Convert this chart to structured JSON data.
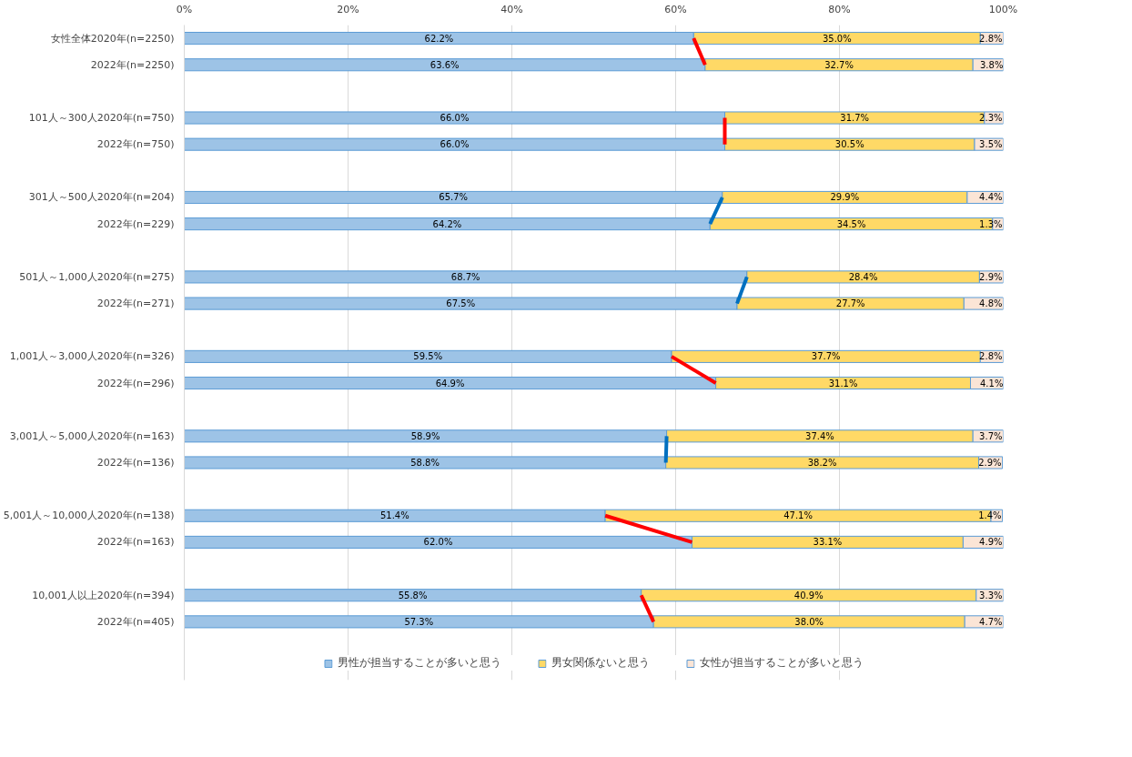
{
  "chart_data": {
    "type": "bar",
    "orientation": "horizontal",
    "stacked": true,
    "categories": [
      "女性全体2020年(n=2250)",
      "2022年(n=2250)",
      null,
      "101人～300人2020年(n=750)",
      "2022年(n=750)",
      null,
      "301人～500人2020年(n=204)",
      "2022年(n=229)",
      null,
      "501人～1,000人2020年(n=275)",
      "2022年(n=271)",
      null,
      "1,001人～3,000人2020年(n=326)",
      "2022年(n=296)",
      null,
      "3,001人～5,000人2020年(n=163)",
      "2022年(n=136)",
      null,
      "5,001人～10,000人2020年(n=138)",
      "2022年(n=163)",
      null,
      "10,001人以上2020年(n=394)",
      "2022年(n=405)"
    ],
    "series": [
      {
        "name": "男性が担当することが多いと思う",
        "color": "#9dc3e6",
        "values": [
          62.2,
          63.6,
          null,
          66.0,
          66.0,
          null,
          65.7,
          64.2,
          null,
          68.7,
          67.5,
          null,
          59.5,
          64.9,
          null,
          58.9,
          58.8,
          null,
          51.4,
          62.0,
          null,
          55.8,
          57.3
        ],
        "value_labels": [
          "62.2%",
          "63.6%",
          null,
          "66.0%",
          "66.0%",
          null,
          "65.7%",
          "64.2%",
          null,
          "68.7%",
          "67.5%",
          null,
          "59.5%",
          "64.9%",
          null,
          "58.9%",
          "58.8%",
          null,
          "51.4%",
          "62.0%",
          null,
          "55.8%",
          "57.3%"
        ]
      },
      {
        "name": "男女関係ないと思う",
        "color": "#ffd966",
        "values": [
          35.0,
          32.7,
          null,
          31.7,
          30.5,
          null,
          29.9,
          34.5,
          null,
          28.4,
          27.7,
          null,
          37.7,
          31.1,
          null,
          37.4,
          38.2,
          null,
          47.1,
          33.1,
          null,
          40.9,
          38.0
        ],
        "value_labels": [
          "35.0%",
          "32.7%",
          null,
          "31.7%",
          "30.5%",
          null,
          "29.9%",
          "34.5%",
          null,
          "28.4%",
          "27.7%",
          null,
          "37.7%",
          "31.1%",
          null,
          "37.4%",
          "38.2%",
          null,
          "47.1%",
          "33.1%",
          null,
          "40.9%",
          "38.0%"
        ]
      },
      {
        "name": "女性が担当することが多いと思う",
        "color": "#fbe5d6",
        "values": [
          2.8,
          3.8,
          null,
          2.3,
          3.5,
          null,
          4.4,
          1.3,
          null,
          2.9,
          4.8,
          null,
          2.8,
          4.1,
          null,
          3.7,
          2.9,
          null,
          1.4,
          4.9,
          null,
          3.3,
          4.7
        ],
        "value_labels": [
          "2.8%",
          "3.8%",
          null,
          "2.3%",
          "3.5%",
          null,
          "4.4%",
          "1.3%",
          null,
          "2.9%",
          "4.8%",
          null,
          "2.8%",
          "4.1%",
          null,
          "3.7%",
          "2.9%",
          null,
          "1.4%",
          "4.9%",
          null,
          "3.3%",
          "4.7%"
        ]
      },
      {
        "type": "line",
        "color": "#ff0000",
        "values": [
          62.2,
          63.6,
          null,
          null,
          null,
          null,
          null,
          null,
          null,
          null,
          null,
          null,
          null,
          null,
          null,
          null,
          null,
          null,
          null,
          null,
          null,
          null,
          null
        ]
      },
      {
        "type": "line",
        "color": "#ff0000",
        "values": [
          null,
          null,
          null,
          66.0,
          66.0,
          null,
          null,
          null,
          null,
          null,
          null,
          null,
          null,
          null,
          null,
          null,
          null,
          null,
          null,
          null,
          null,
          null,
          null
        ]
      },
      {
        "type": "line",
        "color": "#0070c0",
        "values": [
          null,
          null,
          null,
          null,
          null,
          null,
          65.7,
          64.2,
          null,
          null,
          null,
          null,
          null,
          null,
          null,
          null,
          null,
          null,
          null,
          null,
          null,
          null,
          null
        ]
      },
      {
        "type": "line",
        "color": "#0070c0",
        "values": [
          null,
          null,
          null,
          null,
          null,
          null,
          null,
          null,
          null,
          68.7,
          67.5,
          null,
          null,
          null,
          null,
          null,
          null,
          null,
          null,
          null,
          null,
          null,
          null
        ]
      },
      {
        "type": "line",
        "color": "#ff0000",
        "values": [
          null,
          null,
          null,
          null,
          null,
          null,
          null,
          null,
          null,
          null,
          null,
          null,
          59.5,
          64.9,
          null,
          null,
          null,
          null,
          null,
          null,
          null,
          null,
          null
        ]
      },
      {
        "type": "line",
        "color": "#0070c0",
        "values": [
          null,
          null,
          null,
          null,
          null,
          null,
          null,
          null,
          null,
          null,
          null,
          null,
          null,
          null,
          null,
          58.9,
          58.8,
          null,
          null,
          null,
          null,
          null,
          null
        ]
      },
      {
        "type": "line",
        "color": "#ff0000",
        "values": [
          null,
          null,
          null,
          null,
          null,
          null,
          null,
          null,
          null,
          null,
          null,
          null,
          null,
          null,
          null,
          null,
          null,
          null,
          51.4,
          62.0,
          null,
          null,
          null
        ]
      },
      {
        "type": "line",
        "color": "#ff0000",
        "values": [
          null,
          null,
          null,
          null,
          null,
          null,
          null,
          null,
          null,
          null,
          null,
          null,
          null,
          null,
          null,
          null,
          null,
          null,
          null,
          null,
          null,
          55.8,
          57.3
        ]
      }
    ],
    "xlim": [
      0,
      100
    ],
    "xticks": [
      {
        "value": 0,
        "label": "0%"
      },
      {
        "value": 20,
        "label": "20%"
      },
      {
        "value": 40,
        "label": "40%"
      },
      {
        "value": 60,
        "label": "60%"
      },
      {
        "value": 80,
        "label": "80%"
      },
      {
        "value": 100,
        "label": "100%"
      }
    ],
    "grid": "x",
    "legend": "bottom"
  }
}
